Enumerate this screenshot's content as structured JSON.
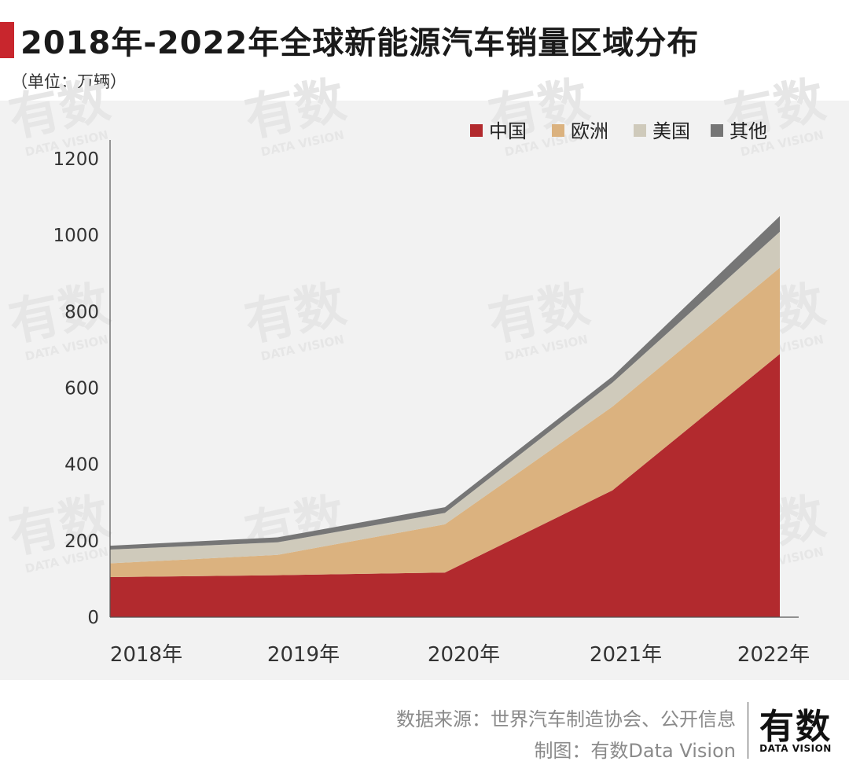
{
  "header": {
    "title": "2018年-2022年全球新能源汽车销量区域分布",
    "unit": "（单位：万辆）",
    "accent_color": "#c8262d"
  },
  "footer": {
    "source": "数据来源：世界汽车制造协会、公开信息",
    "credit": "制图：有数Data Vision",
    "logo_main": "有数",
    "logo_sub": "DATA VISION"
  },
  "watermark": {
    "main": "有数",
    "sub": "DATA VISION"
  },
  "chart_data": {
    "type": "area",
    "stacked": true,
    "categories": [
      "2018年",
      "2019年",
      "2020年",
      "2021年",
      "2022年"
    ],
    "series": [
      {
        "name": "中国",
        "color": "#b22a2e",
        "values": [
          105,
          110,
          117,
          332,
          689
        ]
      },
      {
        "name": "欧洲",
        "color": "#dbb27f",
        "values": [
          36,
          53,
          126,
          219,
          226
        ]
      },
      {
        "name": "美国",
        "color": "#cfcabb",
        "values": [
          36,
          33,
          30,
          63,
          94
        ]
      },
      {
        "name": "其他",
        "color": "#767676",
        "values": [
          10,
          13,
          15,
          16,
          41
        ]
      }
    ],
    "ylim": [
      0,
      1200
    ],
    "yticks": [
      "0",
      "200",
      "400",
      "600",
      "800",
      "1000",
      "1200"
    ],
    "legend_position": "top-right",
    "grid": false
  }
}
